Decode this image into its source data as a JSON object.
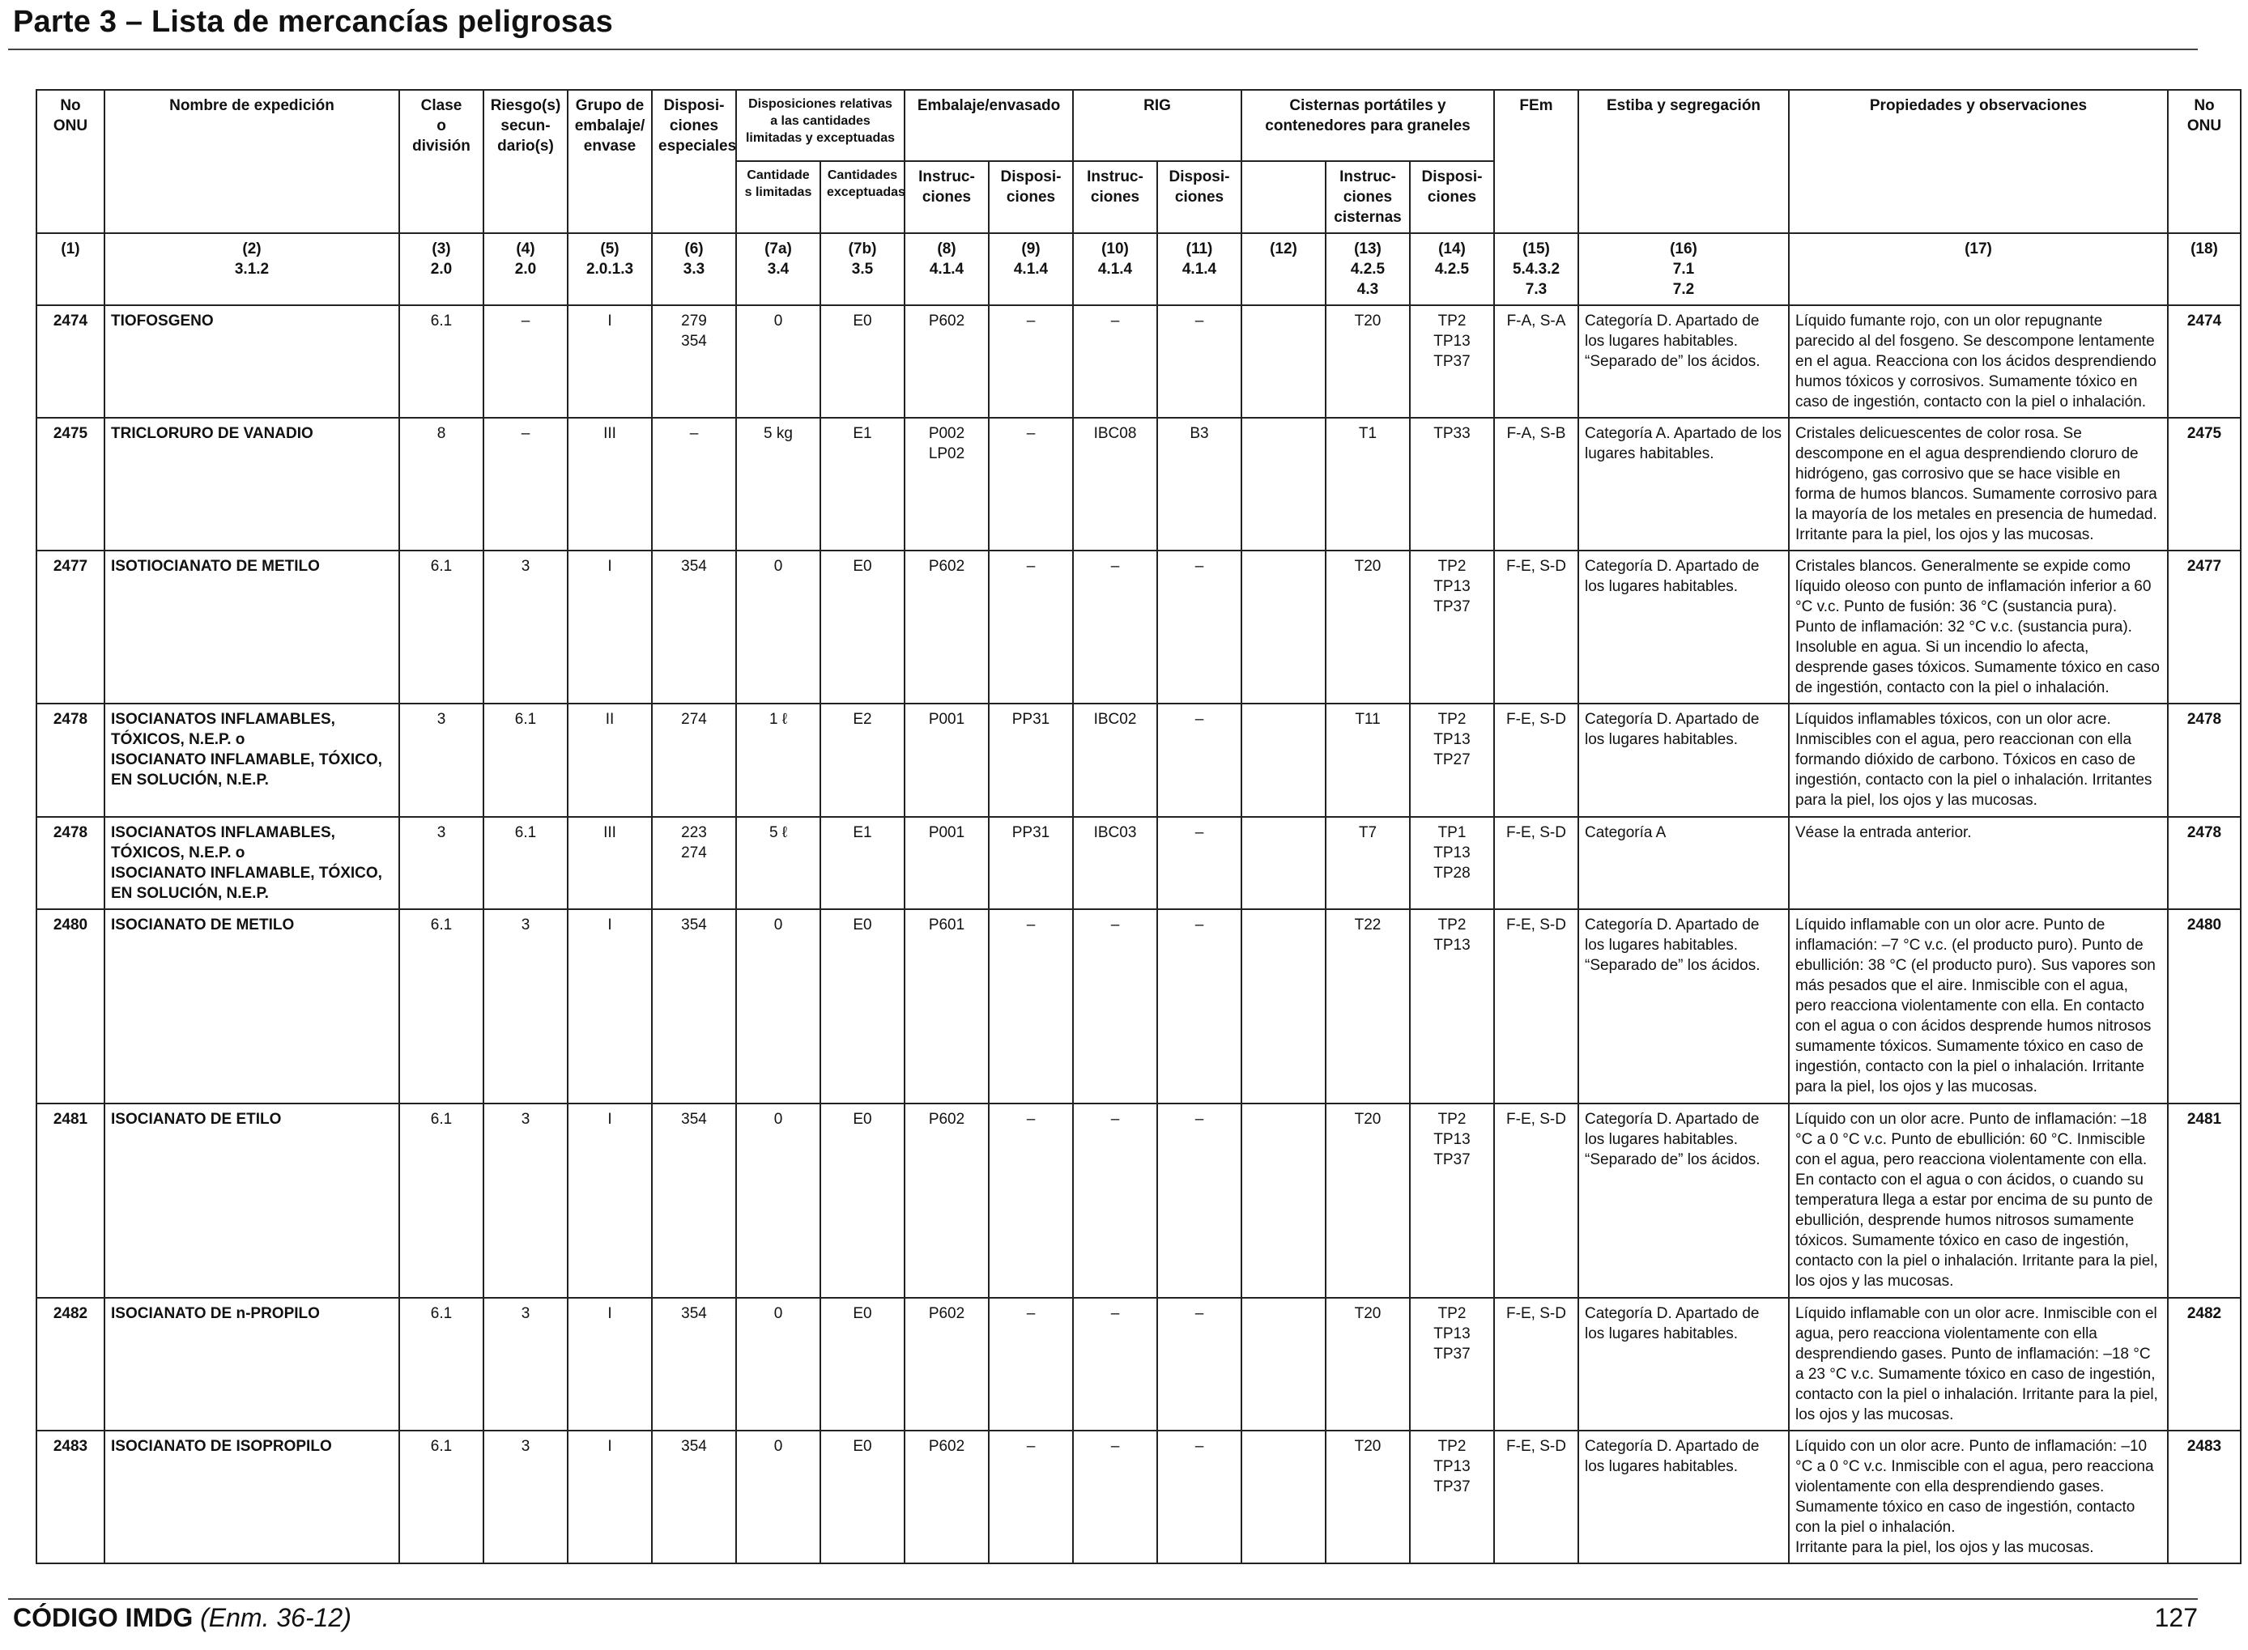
{
  "page": {
    "title": "Parte 3 – Lista de mercancías peligrosas",
    "footer_code": "CÓDIGO IMDG",
    "footer_edition": "(Enm. 36-12)",
    "page_number": "127"
  },
  "header": {
    "h1": "No\nONU",
    "h2": "Nombre de expedición",
    "h3": "Clase\no\ndivisión",
    "h4": "Riesgo(s)\nsecun-\ndario(s)",
    "h5": "Grupo de\nembalaje/\nenvase",
    "h6": "Disposi-\nciones\nespeciales",
    "h7": "Disposiciones relativas\na las cantidades\nlimitadas y exceptuadas",
    "h7a": "Cantidade\ns limitadas",
    "h7b": "Cantidades\nexceptuadas",
    "h8_9": "Embalaje/envasado",
    "h8": "Instruc-\nciones",
    "h9": "Disposi-\nciones",
    "h10_11": "RIG",
    "h10": "Instruc-\nciones",
    "h11": "Disposi-\nciones",
    "h12_14": "Cisternas portátiles y\ncontenedores para graneles",
    "h13": "Instruc-\nciones\ncisternas",
    "h14": "Disposi-\nciones",
    "h15": "FEm",
    "h16": "Estiba y segregación",
    "h17": "Propiedades y observaciones",
    "h18": "No\nONU"
  },
  "colnums": [
    "(1)",
    "(2)\n3.1.2",
    "(3)\n2.0",
    "(4)\n2.0",
    "(5)\n2.0.1.3",
    "(6)\n3.3",
    "(7a)\n3.4",
    "(7b)\n3.5",
    "(8)\n4.1.4",
    "(9)\n4.1.4",
    "(10)\n4.1.4",
    "(11)\n4.1.4",
    "(12)",
    "(13)\n4.2.5\n4.3",
    "(14)\n4.2.5",
    "(15)\n5.4.3.2\n7.3",
    "(16)\n7.1\n7.2",
    "(17)",
    "(18)"
  ],
  "rows": [
    {
      "un": "2474",
      "name": "TIOFOSGENO",
      "clase": "6.1",
      "riesgo": "–",
      "grupo": "I",
      "disp": "279\n354",
      "lim": "0",
      "exc": "E0",
      "emb_ins": "P602",
      "emb_disp": "–",
      "rig_ins": "–",
      "rig_disp": "–",
      "c12": "",
      "cis_ins": "T20",
      "cis_disp": "TP2\nTP13\nTP37",
      "fem": "F-A, S-A",
      "estiba": "Categoría D. Apartado de los lugares habitables. “Separado de” los ácidos.",
      "prop": "Líquido fumante rojo, con un olor repugnante parecido al del fosgeno. Se descompone lentamente en el agua. Reacciona con los ácidos desprendiendo humos tóxicos y corrosivos. Sumamente tóxico en caso de ingestión, contacto con la piel o inhalación.",
      "un2": "2474"
    },
    {
      "un": "2475",
      "name": "TRICLORURO DE VANADIO",
      "clase": "8",
      "riesgo": "–",
      "grupo": "III",
      "disp": "–",
      "lim": "5 kg",
      "exc": "E1",
      "emb_ins": "P002\nLP02",
      "emb_disp": "–",
      "rig_ins": "IBC08",
      "rig_disp": "B3",
      "c12": "",
      "cis_ins": "T1",
      "cis_disp": "TP33",
      "fem": "F-A, S-B",
      "estiba": "Categoría A. Apartado de los lugares habitables.",
      "prop": "Cristales delicuescentes de color rosa. Se descompone en el agua desprendiendo cloruro de hidrógeno, gas corrosivo que se hace visible en forma de humos blancos. Sumamente corrosivo para la mayoría de los metales en presencia de humedad. Irritante para la piel, los ojos y las mucosas.",
      "un2": "2475"
    },
    {
      "un": "2477",
      "name": "ISOTIOCIANATO DE METILO",
      "clase": "6.1",
      "riesgo": "3",
      "grupo": "I",
      "disp": "354",
      "lim": "0",
      "exc": "E0",
      "emb_ins": "P602",
      "emb_disp": "–",
      "rig_ins": "–",
      "rig_disp": "–",
      "c12": "",
      "cis_ins": "T20",
      "cis_disp": "TP2\nTP13\nTP37",
      "fem": "F-E, S-D",
      "estiba": "Categoría D. Apartado de los lugares habitables.",
      "prop": "Cristales blancos. Generalmente se expide como líquido oleoso con punto de inflamación inferior a 60 °C v.c. Punto de fusión: 36 °C (sustancia pura).\nPunto de inflamación: 32 °C v.c. (sustancia pura). Insoluble en agua. Si un incendio lo afecta, desprende gases tóxicos. Sumamente tóxico en caso de ingestión, contacto con la piel o inhalación.",
      "un2": "2477"
    },
    {
      "un": "2478",
      "name": "ISOCIANATOS INFLAMABLES, TÓXICOS, N.E.P. o\nISOCIANATO INFLAMABLE, TÓXICO, EN SOLUCIÓN, N.E.P.",
      "clase": "3",
      "riesgo": "6.1",
      "grupo": "II",
      "disp": "274",
      "lim": "1 ℓ",
      "exc": "E2",
      "emb_ins": "P001",
      "emb_disp": "PP31",
      "rig_ins": "IBC02",
      "rig_disp": "–",
      "c12": "",
      "cis_ins": "T11",
      "cis_disp": "TP2\nTP13\nTP27",
      "fem": "F-E, S-D",
      "estiba": "Categoría D. Apartado de los lugares habitables.",
      "prop": "Líquidos inflamables tóxicos, con un olor acre. Inmiscibles con el agua, pero reaccionan con ella formando dióxido de carbono. Tóxicos en caso de ingestión, contacto con la piel o inhalación. Irritantes para la piel, los ojos y las mucosas.",
      "un2": "2478"
    },
    {
      "un": "2478",
      "name": "ISOCIANATOS INFLAMABLES, TÓXICOS, N.E.P. o\nISOCIANATO INFLAMABLE, TÓXICO, EN SOLUCIÓN, N.E.P.",
      "clase": "3",
      "riesgo": "6.1",
      "grupo": "III",
      "disp": "223\n274",
      "lim": "5 ℓ",
      "exc": "E1",
      "emb_ins": "P001",
      "emb_disp": "PP31",
      "rig_ins": "IBC03",
      "rig_disp": "–",
      "c12": "",
      "cis_ins": "T7",
      "cis_disp": "TP1\nTP13\nTP28",
      "fem": "F-E, S-D",
      "estiba": "Categoría A",
      "prop": "Véase la entrada anterior.",
      "un2": "2478"
    },
    {
      "un": "2480",
      "name": "ISOCIANATO DE METILO",
      "clase": "6.1",
      "riesgo": "3",
      "grupo": "I",
      "disp": "354",
      "lim": "0",
      "exc": "E0",
      "emb_ins": "P601",
      "emb_disp": "–",
      "rig_ins": "–",
      "rig_disp": "–",
      "c12": "",
      "cis_ins": "T22",
      "cis_disp": "TP2\nTP13",
      "fem": "F-E, S-D",
      "estiba": "Categoría D. Apartado de los lugares habitables. “Separado de” los ácidos.",
      "prop": "Líquido inflamable con un olor acre. Punto de inflamación: –7 °C v.c. (el producto puro). Punto de ebullición: 38 °C (el producto puro). Sus vapores son más pesados que el aire. Inmiscible con el agua, pero reacciona violentamente con ella. En contacto con el agua o con ácidos desprende humos nitrosos sumamente tóxicos. Sumamente tóxico en caso de ingestión, contacto con la piel o inhalación. Irritante para la piel, los ojos y las mucosas.",
      "un2": "2480"
    },
    {
      "un": "2481",
      "name": "ISOCIANATO DE ETILO",
      "clase": "6.1",
      "riesgo": "3",
      "grupo": "I",
      "disp": "354",
      "lim": "0",
      "exc": "E0",
      "emb_ins": "P602",
      "emb_disp": "–",
      "rig_ins": "–",
      "rig_disp": "–",
      "c12": "",
      "cis_ins": "T20",
      "cis_disp": "TP2\nTP13\nTP37",
      "fem": "F-E, S-D",
      "estiba": "Categoría D. Apartado de los lugares habitables. “Separado de” los ácidos.",
      "prop": "Líquido con un olor acre. Punto de inflamación: –18 °C a 0 °C v.c. Punto de ebullición: 60 °C. Inmiscible con el agua, pero reacciona violentamente con ella. En contacto con el agua o con ácidos, o cuando su temperatura llega a estar por encima de su punto de ebullición, desprende humos nitrosos sumamente tóxicos. Sumamente tóxico en caso de ingestión, contacto con la piel o inhalación. Irritante para la piel, los ojos y las mucosas.",
      "un2": "2481"
    },
    {
      "un": "2482",
      "name": "ISOCIANATO DE n-PROPILO",
      "clase": "6.1",
      "riesgo": "3",
      "grupo": "I",
      "disp": "354",
      "lim": "0",
      "exc": "E0",
      "emb_ins": "P602",
      "emb_disp": "–",
      "rig_ins": "–",
      "rig_disp": "–",
      "c12": "",
      "cis_ins": "T20",
      "cis_disp": "TP2\nTP13\nTP37",
      "fem": "F-E, S-D",
      "estiba": "Categoría D. Apartado de los lugares habitables.",
      "prop": "Líquido inflamable con un olor acre. Inmiscible con el agua, pero reacciona violentamente con ella desprendiendo gases. Punto de inflamación: –18 °C a 23 °C v.c. Sumamente tóxico en caso de ingestión, contacto con la piel o inhalación. Irritante para la piel, los ojos y las mucosas.",
      "un2": "2482"
    },
    {
      "un": "2483",
      "name": "ISOCIANATO DE ISOPROPILO",
      "clase": "6.1",
      "riesgo": "3",
      "grupo": "I",
      "disp": "354",
      "lim": "0",
      "exc": "E0",
      "emb_ins": "P602",
      "emb_disp": "–",
      "rig_ins": "–",
      "rig_disp": "–",
      "c12": "",
      "cis_ins": "T20",
      "cis_disp": "TP2\nTP13\nTP37",
      "fem": "F-E, S-D",
      "estiba": "Categoría D. Apartado de los lugares habitables.",
      "prop": "Líquido con un olor acre. Punto de inflamación: –10 °C a 0 °C v.c. Inmiscible con el agua, pero reacciona violentamente con ella desprendiendo gases. Sumamente tóxico en caso de ingestión, contacto con la piel o inhalación.\nIrritante para la piel, los ojos y las mucosas.",
      "un2": "2483"
    }
  ]
}
